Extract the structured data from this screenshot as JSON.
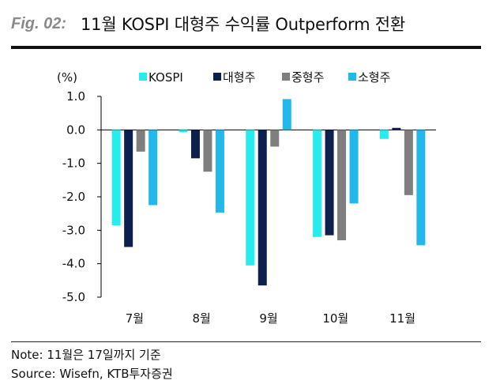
{
  "header": {
    "fig_label": "Fig. 02:",
    "title": "11월 KOSPI 대형주 수익률 Outperform 전환"
  },
  "chart_data": {
    "type": "bar",
    "ylabel": "(%)",
    "ylim": [
      -5.0,
      1.0
    ],
    "yticks": [
      "1.0",
      "0.0",
      "-1.0",
      "-2.0",
      "-3.0",
      "-4.0",
      "-5.0"
    ],
    "categories": [
      "7월",
      "8월",
      "9월",
      "10월",
      "11월"
    ],
    "legend_position": "top-center",
    "series": [
      {
        "name": "KOSPI",
        "color": "#26ecec",
        "values": [
          -2.85,
          -0.07,
          -4.05,
          -3.2,
          -0.27
        ]
      },
      {
        "name": "대형주",
        "color": "#0d1f4c",
        "values": [
          -3.5,
          -0.85,
          -4.65,
          -3.15,
          0.06
        ]
      },
      {
        "name": "중형주",
        "color": "#7f7f7f",
        "values": [
          -0.65,
          -1.25,
          -0.5,
          -3.3,
          -1.95
        ]
      },
      {
        "name": "소형주",
        "color": "#22b8ec",
        "values": [
          -2.25,
          -2.47,
          0.92,
          -2.2,
          -3.45
        ]
      }
    ]
  },
  "footnotes": {
    "note": "Note: 11월은 17일까지 기준",
    "source": "Source: Wisefn, KTB투자증권"
  }
}
